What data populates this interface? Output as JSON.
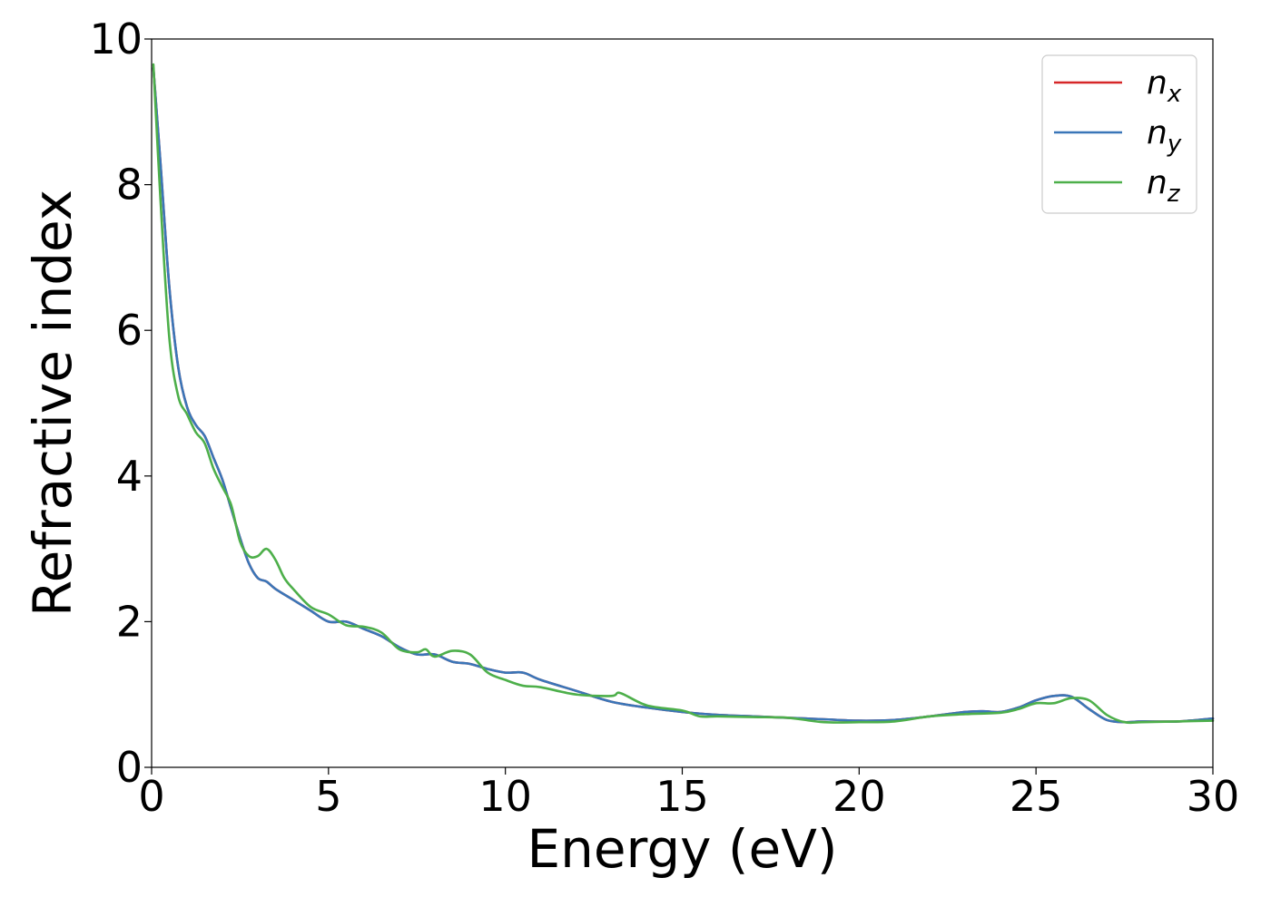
{
  "chart_data": {
    "type": "line",
    "title": "",
    "xlabel": "Energy (eV)",
    "ylabel": "Refractive index",
    "xlim": [
      0,
      30
    ],
    "ylim": [
      0,
      10
    ],
    "xticks": [
      "0",
      "5",
      "10",
      "15",
      "20",
      "25",
      "30"
    ],
    "yticks": [
      "0",
      "2",
      "4",
      "6",
      "8",
      "10"
    ],
    "grid": false,
    "legend_position": "top-right",
    "series": [
      {
        "name": "n",
        "subscript": "x",
        "color": "#d62728",
        "x": [
          0.05,
          0.25,
          0.5,
          0.75,
          1.0,
          1.25,
          1.5,
          1.75,
          2.0,
          2.25,
          2.5,
          2.75,
          3.0,
          3.25,
          3.5,
          4.0,
          4.5,
          5.0,
          5.5,
          6.0,
          6.5,
          7.0,
          7.5,
          8.0,
          8.5,
          9.0,
          9.5,
          10.0,
          10.5,
          11.0,
          12.0,
          13.0,
          14.0,
          15.0,
          16.0,
          17.0,
          18.0,
          19.0,
          20.0,
          21.0,
          22.0,
          23.0,
          23.5,
          24.0,
          24.5,
          25.0,
          25.5,
          26.0,
          26.5,
          27.0,
          27.5,
          28.0,
          29.0,
          30.0
        ],
        "y": [
          9.6,
          8.3,
          6.6,
          5.5,
          4.95,
          4.7,
          4.55,
          4.25,
          3.95,
          3.55,
          3.15,
          2.8,
          2.6,
          2.55,
          2.45,
          2.3,
          2.15,
          2.0,
          2.0,
          1.9,
          1.8,
          1.65,
          1.55,
          1.55,
          1.45,
          1.42,
          1.35,
          1.3,
          1.3,
          1.2,
          1.05,
          0.9,
          0.82,
          0.76,
          0.72,
          0.7,
          0.68,
          0.66,
          0.64,
          0.65,
          0.7,
          0.76,
          0.77,
          0.76,
          0.82,
          0.92,
          0.98,
          0.97,
          0.8,
          0.65,
          0.62,
          0.63,
          0.63,
          0.67
        ]
      },
      {
        "name": "n",
        "subscript": "y",
        "color": "#3a76b8",
        "x": [
          0.05,
          0.25,
          0.5,
          0.75,
          1.0,
          1.25,
          1.5,
          1.75,
          2.0,
          2.25,
          2.5,
          2.75,
          3.0,
          3.25,
          3.5,
          4.0,
          4.5,
          5.0,
          5.5,
          6.0,
          6.5,
          7.0,
          7.5,
          8.0,
          8.5,
          9.0,
          9.5,
          10.0,
          10.5,
          11.0,
          12.0,
          13.0,
          14.0,
          15.0,
          16.0,
          17.0,
          18.0,
          19.0,
          20.0,
          21.0,
          22.0,
          23.0,
          23.5,
          24.0,
          24.5,
          25.0,
          25.5,
          26.0,
          26.5,
          27.0,
          27.5,
          28.0,
          29.0,
          30.0
        ],
        "y": [
          9.6,
          8.3,
          6.6,
          5.5,
          4.95,
          4.7,
          4.55,
          4.25,
          3.95,
          3.55,
          3.15,
          2.8,
          2.6,
          2.55,
          2.45,
          2.3,
          2.15,
          2.0,
          2.0,
          1.9,
          1.8,
          1.65,
          1.55,
          1.55,
          1.45,
          1.42,
          1.35,
          1.3,
          1.3,
          1.2,
          1.05,
          0.9,
          0.82,
          0.76,
          0.72,
          0.7,
          0.68,
          0.66,
          0.64,
          0.65,
          0.7,
          0.76,
          0.77,
          0.76,
          0.82,
          0.92,
          0.98,
          0.97,
          0.8,
          0.65,
          0.62,
          0.63,
          0.63,
          0.67
        ]
      },
      {
        "name": "n",
        "subscript": "z",
        "color": "#4daf4a",
        "x": [
          0.05,
          0.25,
          0.5,
          0.75,
          1.0,
          1.25,
          1.5,
          1.75,
          2.0,
          2.25,
          2.5,
          2.75,
          3.0,
          3.25,
          3.5,
          3.75,
          4.0,
          4.5,
          5.0,
          5.5,
          6.0,
          6.5,
          7.0,
          7.5,
          7.75,
          8.0,
          8.5,
          9.0,
          9.5,
          10.0,
          10.5,
          11.0,
          12.0,
          13.0,
          13.25,
          14.0,
          15.0,
          15.5,
          16.0,
          17.0,
          18.0,
          19.0,
          20.0,
          21.0,
          22.0,
          23.0,
          24.0,
          24.5,
          25.0,
          25.5,
          26.0,
          26.5,
          27.0,
          27.5,
          28.0,
          29.0,
          30.0
        ],
        "y": [
          9.65,
          7.8,
          5.9,
          5.1,
          4.85,
          4.6,
          4.45,
          4.1,
          3.85,
          3.6,
          3.1,
          2.9,
          2.9,
          3.0,
          2.85,
          2.6,
          2.45,
          2.2,
          2.1,
          1.95,
          1.93,
          1.85,
          1.62,
          1.58,
          1.62,
          1.52,
          1.6,
          1.55,
          1.3,
          1.2,
          1.12,
          1.1,
          1.0,
          0.98,
          1.02,
          0.85,
          0.78,
          0.7,
          0.7,
          0.69,
          0.68,
          0.62,
          0.62,
          0.63,
          0.7,
          0.73,
          0.75,
          0.8,
          0.88,
          0.88,
          0.95,
          0.92,
          0.72,
          0.62,
          0.62,
          0.63,
          0.64
        ]
      }
    ]
  }
}
